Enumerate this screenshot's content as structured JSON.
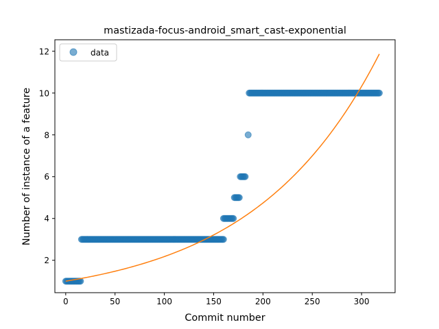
{
  "chart_data": {
    "type": "scatter",
    "title": "mastizada-focus-android_smart_cast-exponential",
    "xlabel": "Commit number",
    "ylabel": "Number of instance of a feature",
    "xlim": [
      -11,
      334
    ],
    "ylim": [
      0.45,
      12.55
    ],
    "xticks": [
      0,
      50,
      100,
      150,
      200,
      250,
      300
    ],
    "yticks": [
      2,
      4,
      6,
      8,
      10,
      12
    ],
    "legend": {
      "position": "upper-left",
      "label": "data"
    },
    "colors": {
      "data": "#1f77b4",
      "fit": "#ff7f0e"
    },
    "series": [
      {
        "name": "data",
        "kind": "points",
        "segments": [
          {
            "x_start": 0,
            "x_end": 15,
            "y": 1
          },
          {
            "x_start": 16,
            "x_end": 160,
            "y": 3
          },
          {
            "x_start": 160,
            "x_end": 170,
            "y": 4
          },
          {
            "x_start": 171,
            "x_end": 176,
            "y": 5
          },
          {
            "x_start": 177,
            "x_end": 182,
            "y": 6
          },
          {
            "x_start": 185,
            "x_end": 185,
            "y": 8
          },
          {
            "x_start": 186,
            "x_end": 318,
            "y": 10
          }
        ]
      },
      {
        "name": "",
        "kind": "line",
        "model": "exponential",
        "a": 1.0,
        "b": 0.00778,
        "x_start": 0,
        "x_end": 318
      }
    ]
  }
}
